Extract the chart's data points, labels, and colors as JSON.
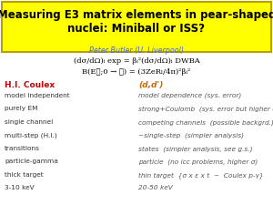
{
  "title": "Measuring E3 matrix elements in pear-shaped\nnuclei: Miniball or ISS?",
  "subtitle": "Peter Butler (U. Liverpool)",
  "formula1": "(dσ/dΩ)ᵢ exp = βᵢ²(dσ/dΩ)ᵢ DWBA",
  "formula2": "B(Eℓ;0 → ℓ) = (3ZeRₗ/4π)²βᵢ²",
  "col1_header": "H.I. Coulex",
  "col2_header": "(d,d')",
  "col1_items": [
    "model independent",
    "purely EM",
    "single channel",
    "multi-step (H.I.)",
    "transitions",
    "particle-gamma",
    "thick target",
    "3-10 keV"
  ],
  "col2_items": [
    "model dependence (sys. error)",
    "strong+Coulomb  (sys. error but higher σ)",
    "competing channels  (possible backgrd.)",
    "~single-step  (simpler analysis)",
    "states  (simpler analysis, see g.s.)",
    "particle  (no icc problems, higher σ)",
    "thin target  {σ x ε x t  ~  Coulex p-γ}",
    "20-50 keV"
  ],
  "header_bg": "#ffff00",
  "header_border": "#b8a000",
  "col1_header_color": "#cc0000",
  "col2_header_color": "#cc6600",
  "body_bg": "#ffffff",
  "title_color": "#000000",
  "subtitle_color": "#4169e1",
  "col1_color": "#333333",
  "col2_color": "#555555",
  "title_fontsize": 8.5,
  "subtitle_fontsize": 5.8,
  "formula_fontsize": 6.0,
  "header_fontsize": 6.5,
  "body_fontsize": 5.3
}
